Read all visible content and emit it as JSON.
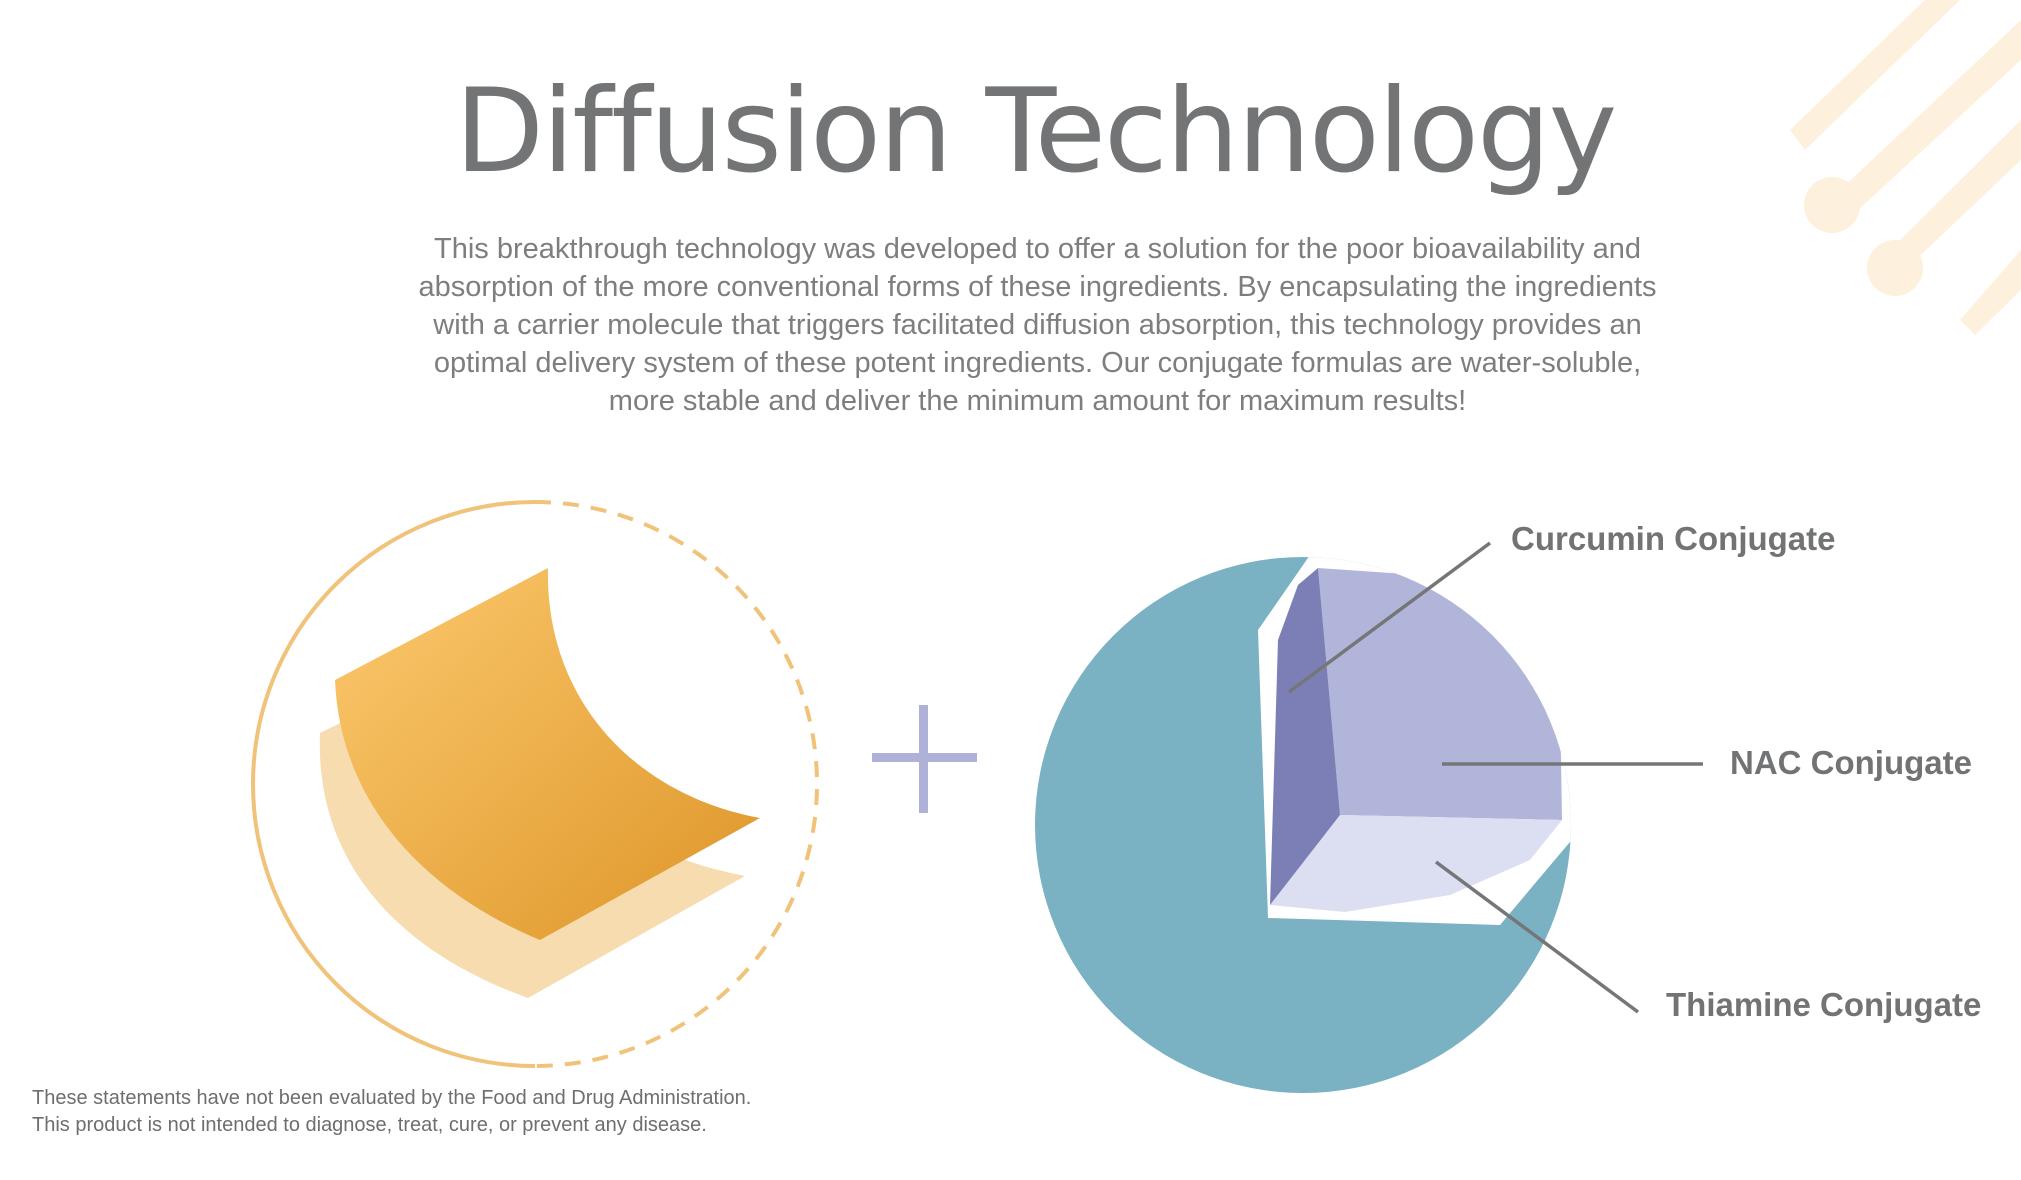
{
  "title": "Diffusion Technology",
  "description": {
    "lines": [
      "This breakthrough technology was developed to offer a solution for the poor bioavailability and",
      "absorption of the more conventional forms of these ingredients. By encapsulating the ingredients",
      "with a carrier molecule that triggers facilitated diffusion absorption, this technology provides an",
      "optimal delivery system of these potent ingredients. Our conjugate formulas are water-soluble,",
      "more stable and deliver the minimum amount for maximum results!"
    ]
  },
  "diagram": {
    "operator": "+",
    "callouts": {
      "curcumin": "Curcumin Conjugate",
      "nac": "NAC Conjugate",
      "thiamine": "Thiamine Conjugate"
    },
    "colors": {
      "ring": "#f1c27a",
      "sheet_light": "#f6dcae",
      "sheet_dark_start": "#fcc96e",
      "sheet_dark_end": "#dd9528",
      "plus": "#afb1d8",
      "sphere": "#7ab1c3",
      "wedge_left": "#7c7fb6",
      "wedge_back": "#b2b5da",
      "wedge_bottom": "#dcdef1",
      "leader_line": "#757678",
      "decor_streaks": "#fdf1dd"
    }
  },
  "disclaimer": {
    "lines": [
      "These statements have not been evaluated by the Food and Drug Administration.",
      "This product is not intended to diagnose, treat, cure, or prevent any disease."
    ]
  }
}
